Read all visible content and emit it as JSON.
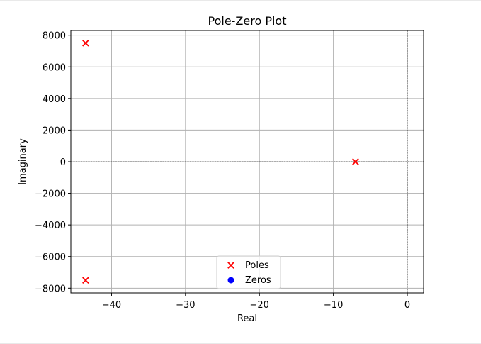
{
  "chart_data": {
    "type": "scatter",
    "title": "Pole-Zero Plot",
    "xlabel": "Real",
    "ylabel": "Imaginary",
    "xlim": [
      -45.5,
      2.2
    ],
    "ylim": [
      -8300,
      8300
    ],
    "x_ticks": [
      -40,
      -30,
      -20,
      -10,
      0
    ],
    "y_ticks": [
      -8000,
      -6000,
      -4000,
      -2000,
      0,
      2000,
      4000,
      6000,
      8000
    ],
    "grid": true,
    "reference_lines": {
      "x": 0,
      "y": 0,
      "style": "dashed",
      "color": "#000000"
    },
    "legend": {
      "position": "lower-center"
    },
    "series": [
      {
        "name": "Poles",
        "marker": "x",
        "color": "#ff0000",
        "points": [
          {
            "x": -43.5,
            "y": 7500
          },
          {
            "x": -43.5,
            "y": -7500
          },
          {
            "x": -7.0,
            "y": 0
          }
        ]
      },
      {
        "name": "Zeros",
        "marker": "o",
        "color": "#0000ff",
        "points": []
      }
    ]
  }
}
